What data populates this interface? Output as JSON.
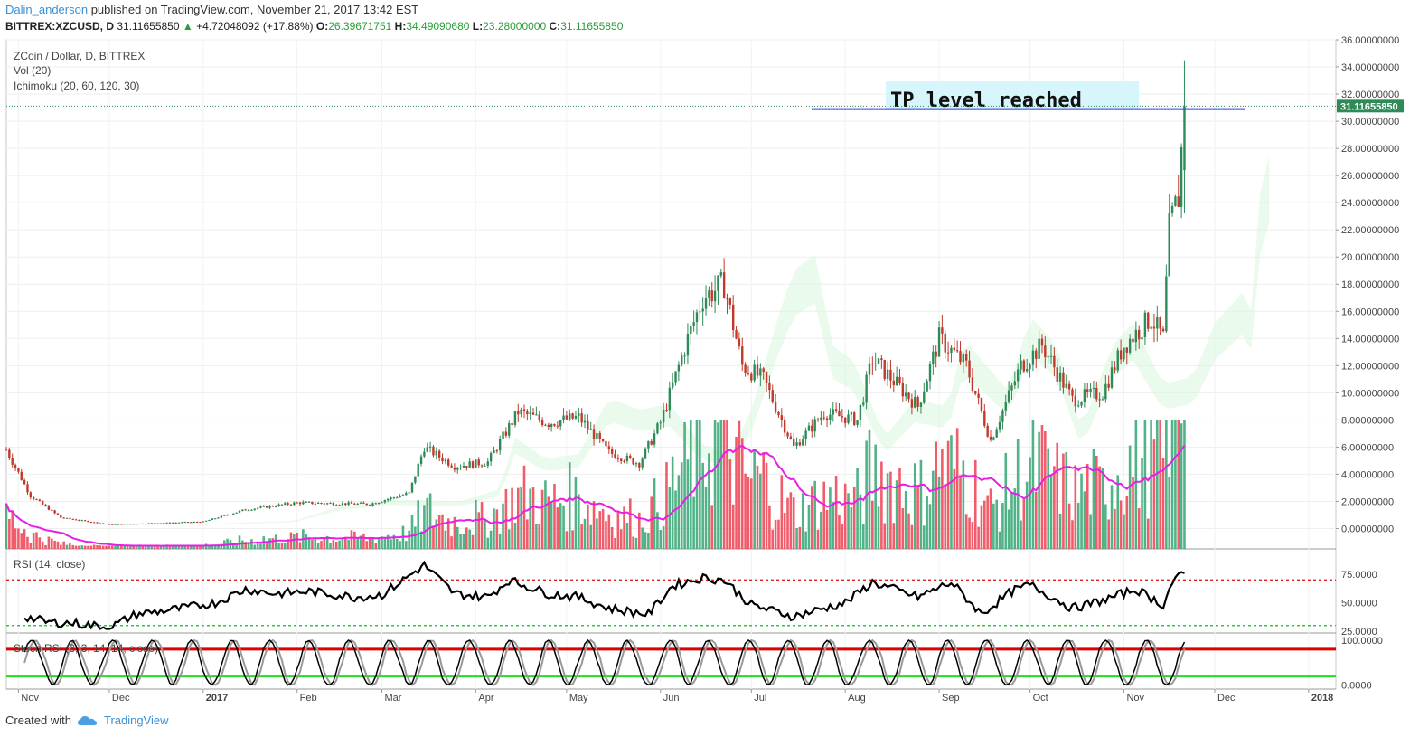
{
  "header": {
    "author": "Dalin_anderson",
    "published": "published on TradingView.com, November 21, 2017 13:42 EST"
  },
  "ticker": {
    "symbol": "BITTREX:XZCUSD, D",
    "last": "31.11655850",
    "change": "+4.72048092 (+17.88%)",
    "o_label": "O:",
    "o": "26.39671751",
    "h_label": "H:",
    "h": "34.49090680",
    "l_label": "L:",
    "l": "23.28000000",
    "c_label": "C:",
    "c": "31.11655850"
  },
  "legend": {
    "main": "ZCoin / Dollar, D, BITTREX",
    "vol": "Vol (20)",
    "ichimoku": "Ichimoku (20, 60, 120, 30)",
    "rsi": "RSI (14, close)",
    "stoch": "Stoch RSI (3, 3, 14, 14, close)"
  },
  "annotation": "TP level reached",
  "price_badge": "31.11655850",
  "footer": {
    "created_with": "Created with",
    "brand": "TradingView"
  },
  "colors": {
    "up": "#2e8b57",
    "down": "#c0392b",
    "vol_up": "#3faa7a",
    "vol_down": "#ef4a5a",
    "vol_ma": "#e61ee6",
    "tp_line": "#3a3ae0",
    "badge": "#2e8b57",
    "rsi_line": "#000000",
    "rsi_upper": "#e02020",
    "rsi_lower": "#2ecc2e",
    "stoch_k": "#000000",
    "stoch_d": "#999999",
    "stoch_upper": "#e00000",
    "stoch_lower": "#22dd22",
    "annot_bg": "#d6f6fb"
  },
  "chart_data": [
    {
      "type": "candlestick",
      "title": "ZCoin / Dollar, D, BITTREX",
      "x_range": [
        "2016-10-28",
        "2018-01-10"
      ],
      "ylim": [
        -1.5,
        36.0
      ],
      "y_ticks": [
        "36.00000000",
        "34.00000000",
        "32.00000000",
        "30.00000000",
        "28.00000000",
        "26.00000000",
        "24.00000000",
        "22.00000000",
        "20.00000000",
        "18.00000000",
        "16.00000000",
        "14.00000000",
        "12.00000000",
        "10.00000000",
        "8.00000000",
        "6.00000000",
        "4.00000000",
        "2.00000000",
        "0.00000000"
      ],
      "x_ticks": [
        "Nov",
        "Dec",
        "2017",
        "Feb",
        "Mar",
        "Apr",
        "May",
        "Jun",
        "Jul",
        "Aug",
        "Sep",
        "Oct",
        "Nov",
        "Dec",
        "2018"
      ],
      "x_tick_dates": [
        "2016-11-01",
        "2016-12-01",
        "2017-01-01",
        "2017-02-01",
        "2017-03-01",
        "2017-04-01",
        "2017-05-01",
        "2017-06-01",
        "2017-07-01",
        "2017-08-01",
        "2017-09-01",
        "2017-10-01",
        "2017-11-01",
        "2017-12-01",
        "2018-01-01"
      ],
      "close_trend": [
        [
          "2016-10-28",
          5.8
        ],
        [
          "2016-11-05",
          2.4
        ],
        [
          "2016-11-15",
          0.8
        ],
        [
          "2016-12-01",
          0.3
        ],
        [
          "2017-01-01",
          0.5
        ],
        [
          "2017-01-15",
          1.4
        ],
        [
          "2017-02-01",
          1.9
        ],
        [
          "2017-02-25",
          1.8
        ],
        [
          "2017-03-10",
          2.6
        ],
        [
          "2017-03-15",
          6.0
        ],
        [
          "2017-03-25",
          4.6
        ],
        [
          "2017-04-05",
          4.9
        ],
        [
          "2017-04-15",
          8.6
        ],
        [
          "2017-04-25",
          7.8
        ],
        [
          "2017-05-05",
          8.2
        ],
        [
          "2017-05-15",
          5.6
        ],
        [
          "2017-05-25",
          4.8
        ],
        [
          "2017-06-01",
          7.8
        ],
        [
          "2017-06-10",
          14.0
        ],
        [
          "2017-06-15",
          17.0
        ],
        [
          "2017-06-22",
          18.0
        ],
        [
          "2017-06-28",
          12.0
        ],
        [
          "2017-07-05",
          11.0
        ],
        [
          "2017-07-15",
          6.0
        ],
        [
          "2017-07-25",
          8.5
        ],
        [
          "2017-08-05",
          8.0
        ],
        [
          "2017-08-10",
          12.5
        ],
        [
          "2017-08-25",
          9.0
        ],
        [
          "2017-09-01",
          14.0
        ],
        [
          "2017-09-10",
          12.0
        ],
        [
          "2017-09-18",
          6.5
        ],
        [
          "2017-09-28",
          12.0
        ],
        [
          "2017-10-05",
          13.5
        ],
        [
          "2017-10-15",
          9.5
        ],
        [
          "2017-10-25",
          10.0
        ],
        [
          "2017-11-01",
          13.5
        ],
        [
          "2017-11-10",
          15.5
        ],
        [
          "2017-11-14",
          14.0
        ],
        [
          "2017-11-16",
          22.0
        ],
        [
          "2017-11-19",
          24.5
        ],
        [
          "2017-11-21",
          31.1165585
        ]
      ],
      "last": {
        "open": 26.39671751,
        "high": 34.4909068,
        "low": 23.28,
        "close": 31.1165585
      },
      "tp_level": 30.9,
      "annotation": "TP level reached"
    },
    {
      "type": "area",
      "title": "Vol (20)",
      "series_ma_note": "volume moving average line in magenta"
    },
    {
      "type": "line",
      "title": "RSI (14, close)",
      "ylim": [
        25,
        95
      ],
      "y_ticks": [
        "75.0000",
        "50.0000",
        "25.0000"
      ],
      "bands": [
        70,
        30
      ],
      "points": [
        [
          "2016-11-03",
          38
        ],
        [
          "2016-11-10",
          33
        ],
        [
          "2016-11-20",
          32
        ],
        [
          "2016-12-01",
          28
        ],
        [
          "2016-12-10",
          40
        ],
        [
          "2016-12-25",
          45
        ],
        [
          "2017-01-05",
          50
        ],
        [
          "2017-01-15",
          62
        ],
        [
          "2017-01-25",
          58
        ],
        [
          "2017-02-05",
          60
        ],
        [
          "2017-02-20",
          55
        ],
        [
          "2017-03-01",
          57
        ],
        [
          "2017-03-15",
          83
        ],
        [
          "2017-03-25",
          58
        ],
        [
          "2017-04-05",
          55
        ],
        [
          "2017-04-12",
          70
        ],
        [
          "2017-04-25",
          58
        ],
        [
          "2017-05-05",
          55
        ],
        [
          "2017-05-15",
          45
        ],
        [
          "2017-05-28",
          40
        ],
        [
          "2017-06-05",
          65
        ],
        [
          "2017-06-15",
          72
        ],
        [
          "2017-06-22",
          70
        ],
        [
          "2017-07-01",
          48
        ],
        [
          "2017-07-15",
          38
        ],
        [
          "2017-08-01",
          50
        ],
        [
          "2017-08-10",
          68
        ],
        [
          "2017-08-25",
          55
        ],
        [
          "2017-09-05",
          68
        ],
        [
          "2017-09-15",
          40
        ],
        [
          "2017-09-25",
          60
        ],
        [
          "2017-10-01",
          66
        ],
        [
          "2017-10-15",
          45
        ],
        [
          "2017-10-25",
          52
        ],
        [
          "2017-11-05",
          62
        ],
        [
          "2017-11-14",
          48
        ],
        [
          "2017-11-17",
          68
        ],
        [
          "2017-11-21",
          76
        ]
      ]
    },
    {
      "type": "line",
      "title": "Stoch RSI (3, 3, 14, 14, close)",
      "ylim": [
        -5,
        110
      ],
      "y_ticks": [
        "100.0000",
        "0.0000"
      ],
      "bands": [
        80,
        20
      ]
    }
  ]
}
